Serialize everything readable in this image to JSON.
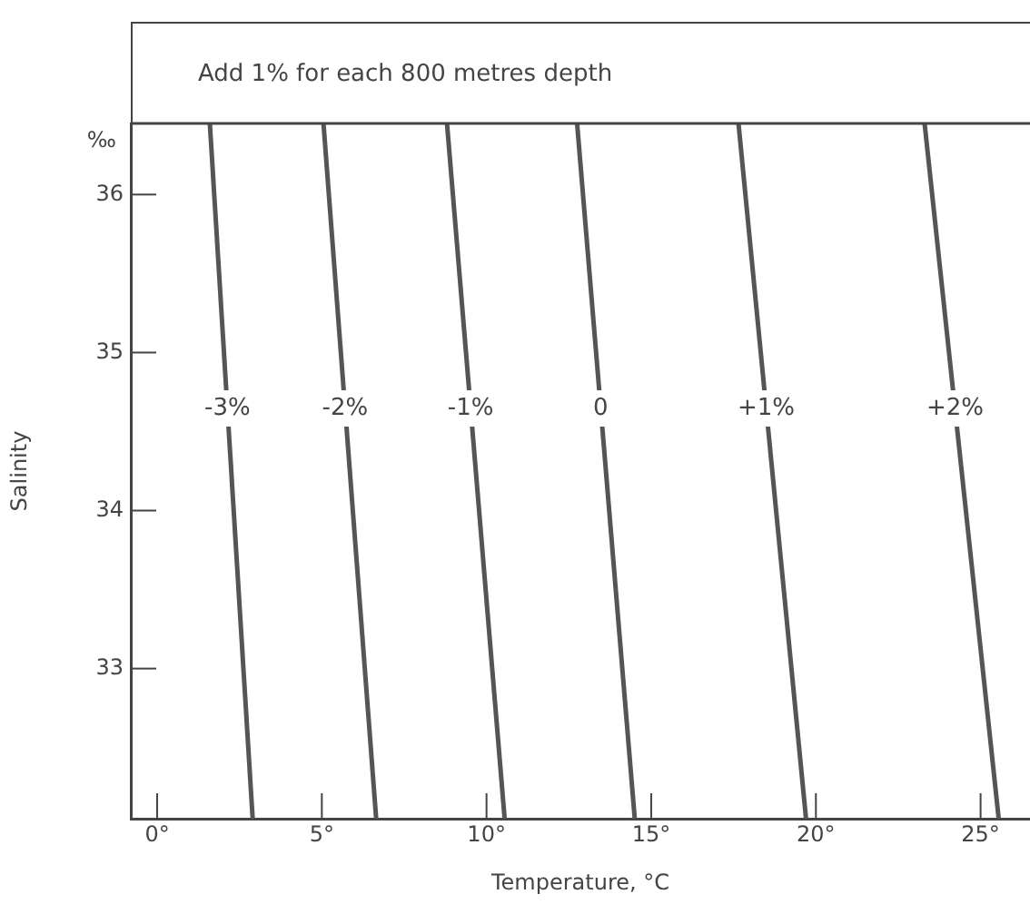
{
  "chart_data": {
    "type": "line",
    "xlabel": "Temperature, °C",
    "ylabel": "Salinity",
    "annotations": [
      "Add 1% for each 800 metres depth",
      "‰"
    ],
    "xlim": [
      -0.8,
      26.5
    ],
    "ylim": [
      32.05,
      36.45
    ],
    "xticks": [
      {
        "value": 0,
        "label": "0°"
      },
      {
        "value": 5,
        "label": "5°"
      },
      {
        "value": 10,
        "label": "10°"
      },
      {
        "value": 15,
        "label": "15°"
      },
      {
        "value": 20,
        "label": "20°"
      },
      {
        "value": 25,
        "label": "25°"
      }
    ],
    "yticks": [
      {
        "value": 33,
        "label": "33"
      },
      {
        "value": 34,
        "label": "34"
      },
      {
        "value": 35,
        "label": "35"
      },
      {
        "value": 36,
        "label": "36"
      }
    ],
    "grid": false,
    "legend": false,
    "marker": "none",
    "line_style": "solid",
    "series": [
      {
        "name": "-3%",
        "color": "#555555",
        "x": [
          1.6,
          2.9
        ],
        "values": [
          36.45,
          32.05
        ]
      },
      {
        "name": "-2%",
        "color": "#555555",
        "x": [
          5.05,
          6.65
        ],
        "values": [
          36.45,
          32.05
        ]
      },
      {
        "name": "-1%",
        "color": "#555555",
        "x": [
          8.8,
          10.55
        ],
        "values": [
          36.45,
          32.05
        ]
      },
      {
        "name": "0",
        "color": "#555555",
        "x": [
          12.75,
          14.5
        ],
        "values": [
          36.45,
          32.05
        ]
      },
      {
        "name": "+1%",
        "color": "#555555",
        "x": [
          17.65,
          19.7
        ],
        "values": [
          36.45,
          32.05
        ]
      },
      {
        "name": "+2%",
        "color": "#555555",
        "x": [
          23.3,
          25.55
        ],
        "values": [
          36.45,
          32.05
        ]
      }
    ]
  }
}
